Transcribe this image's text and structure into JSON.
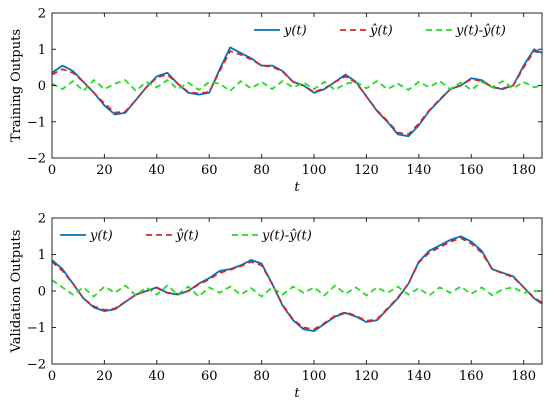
{
  "chart_data": [
    {
      "type": "line",
      "ylabel": "Training Outputs",
      "xlabel": "t",
      "xlim": [
        0,
        187
      ],
      "ylim": [
        -2,
        2
      ],
      "xticks": [
        0,
        20,
        40,
        60,
        80,
        100,
        120,
        140,
        160,
        180
      ],
      "yticks": [
        -2,
        -1,
        0,
        1,
        2
      ],
      "grid": false,
      "legend_position": "top-right",
      "series": [
        {
          "name": "y(t)",
          "color": "#0072BD",
          "dash": "solid",
          "x": [
            0,
            4,
            8,
            12,
            16,
            20,
            24,
            28,
            32,
            36,
            40,
            44,
            48,
            52,
            56,
            60,
            64,
            68,
            72,
            76,
            80,
            84,
            88,
            92,
            96,
            100,
            104,
            108,
            112,
            116,
            120,
            124,
            128,
            132,
            136,
            140,
            144,
            148,
            152,
            156,
            160,
            164,
            168,
            172,
            176,
            180,
            184,
            187
          ],
          "y": [
            0.35,
            0.55,
            0.4,
            0.1,
            -0.2,
            -0.55,
            -0.8,
            -0.75,
            -0.4,
            -0.05,
            0.25,
            0.35,
            0.05,
            -0.2,
            -0.25,
            -0.2,
            0.45,
            1.05,
            0.9,
            0.75,
            0.55,
            0.55,
            0.4,
            0.1,
            0.0,
            -0.2,
            -0.1,
            0.1,
            0.3,
            0.1,
            -0.3,
            -0.7,
            -1.0,
            -1.35,
            -1.4,
            -1.1,
            -0.7,
            -0.4,
            -0.1,
            0.0,
            0.2,
            0.15,
            -0.05,
            -0.1,
            0.0,
            0.55,
            1.0,
            0.9
          ]
        },
        {
          "name": "ŷ(t)",
          "color": "#D62728",
          "dash": "dashed",
          "x": [
            0,
            4,
            8,
            12,
            16,
            20,
            24,
            28,
            32,
            36,
            40,
            44,
            48,
            52,
            56,
            60,
            64,
            68,
            72,
            76,
            80,
            84,
            88,
            92,
            96,
            100,
            104,
            108,
            112,
            116,
            120,
            124,
            128,
            132,
            136,
            140,
            144,
            148,
            152,
            156,
            160,
            164,
            168,
            172,
            176,
            180,
            184,
            187
          ],
          "y": [
            0.3,
            0.45,
            0.35,
            0.1,
            -0.2,
            -0.5,
            -0.75,
            -0.72,
            -0.4,
            -0.05,
            0.22,
            0.3,
            0.05,
            -0.18,
            -0.22,
            -0.18,
            0.4,
            0.95,
            0.85,
            0.72,
            0.55,
            0.52,
            0.38,
            0.1,
            0.0,
            -0.18,
            -0.08,
            0.1,
            0.25,
            0.08,
            -0.3,
            -0.68,
            -0.98,
            -1.3,
            -1.35,
            -1.05,
            -0.68,
            -0.38,
            -0.1,
            0.0,
            0.18,
            0.12,
            -0.05,
            -0.08,
            0.0,
            0.5,
            0.95,
            0.88
          ]
        },
        {
          "name": "y(t)-ŷ(t)",
          "color": "#22DD22",
          "dash": "dashed",
          "x": [
            0,
            4,
            8,
            12,
            16,
            20,
            24,
            28,
            32,
            36,
            40,
            44,
            48,
            52,
            56,
            60,
            64,
            68,
            72,
            76,
            80,
            84,
            88,
            92,
            96,
            100,
            104,
            108,
            112,
            116,
            120,
            124,
            128,
            132,
            136,
            140,
            144,
            148,
            152,
            156,
            160,
            164,
            168,
            172,
            176,
            180,
            184,
            187
          ],
          "y": [
            0.05,
            -0.1,
            0.12,
            -0.15,
            0.15,
            -0.1,
            0.05,
            0.15,
            -0.15,
            0.1,
            -0.05,
            0.15,
            -0.1,
            0.08,
            -0.12,
            0.1,
            0.05,
            -0.15,
            0.12,
            -0.08,
            0.1,
            -0.1,
            0.12,
            -0.05,
            0.08,
            -0.1,
            0.1,
            -0.12,
            0.05,
            0.1,
            -0.08,
            0.12,
            -0.1,
            0.05,
            -0.12,
            0.1,
            -0.05,
            0.12,
            -0.1,
            0.08,
            -0.12,
            0.1,
            -0.05,
            0.12,
            -0.08,
            0.1,
            -0.05,
            0.0
          ]
        }
      ]
    },
    {
      "type": "line",
      "ylabel": "Validation Outputs",
      "xlabel": "t",
      "xlim": [
        0,
        187
      ],
      "ylim": [
        -2,
        2
      ],
      "xticks": [
        0,
        20,
        40,
        60,
        80,
        100,
        120,
        140,
        160,
        180
      ],
      "yticks": [
        -2,
        -1,
        0,
        1,
        2
      ],
      "grid": false,
      "legend_position": "top-left",
      "series": [
        {
          "name": "y(t)",
          "color": "#0072BD",
          "dash": "solid",
          "x": [
            0,
            4,
            8,
            12,
            16,
            20,
            24,
            28,
            32,
            36,
            40,
            44,
            48,
            52,
            56,
            60,
            64,
            68,
            72,
            76,
            80,
            84,
            88,
            92,
            96,
            100,
            104,
            108,
            112,
            116,
            120,
            124,
            128,
            132,
            136,
            140,
            144,
            148,
            152,
            156,
            160,
            164,
            168,
            172,
            176,
            180,
            184,
            187
          ],
          "y": [
            0.85,
            0.6,
            0.2,
            -0.2,
            -0.45,
            -0.55,
            -0.5,
            -0.3,
            -0.1,
            0.0,
            0.1,
            -0.05,
            -0.1,
            0.0,
            0.2,
            0.35,
            0.55,
            0.6,
            0.7,
            0.85,
            0.75,
            0.2,
            -0.4,
            -0.8,
            -1.05,
            -1.1,
            -0.9,
            -0.7,
            -0.6,
            -0.7,
            -0.85,
            -0.8,
            -0.5,
            -0.2,
            0.2,
            0.8,
            1.1,
            1.25,
            1.4,
            1.5,
            1.35,
            1.1,
            0.6,
            0.5,
            0.4,
            0.1,
            -0.2,
            -0.35
          ]
        },
        {
          "name": "ŷ(t)",
          "color": "#D62728",
          "dash": "dashed",
          "x": [
            0,
            4,
            8,
            12,
            16,
            20,
            24,
            28,
            32,
            36,
            40,
            44,
            48,
            52,
            56,
            60,
            64,
            68,
            72,
            76,
            80,
            84,
            88,
            92,
            96,
            100,
            104,
            108,
            112,
            116,
            120,
            124,
            128,
            132,
            136,
            140,
            144,
            148,
            152,
            156,
            160,
            164,
            168,
            172,
            176,
            180,
            184,
            187
          ],
          "y": [
            0.8,
            0.55,
            0.2,
            -0.2,
            -0.42,
            -0.52,
            -0.48,
            -0.3,
            -0.1,
            0.0,
            0.08,
            -0.05,
            -0.08,
            0.0,
            0.18,
            0.32,
            0.5,
            0.58,
            0.68,
            0.8,
            0.7,
            0.2,
            -0.38,
            -0.78,
            -1.0,
            -1.05,
            -0.88,
            -0.68,
            -0.58,
            -0.68,
            -0.82,
            -0.78,
            -0.48,
            -0.18,
            0.2,
            0.78,
            1.05,
            1.2,
            1.35,
            1.45,
            1.3,
            1.05,
            0.6,
            0.48,
            0.38,
            0.1,
            -0.18,
            -0.32
          ]
        },
        {
          "name": "y(t)-ŷ(t)",
          "color": "#22DD22",
          "dash": "dashed",
          "x": [
            0,
            4,
            8,
            12,
            16,
            20,
            24,
            28,
            32,
            36,
            40,
            44,
            48,
            52,
            56,
            60,
            64,
            68,
            72,
            76,
            80,
            84,
            88,
            92,
            96,
            100,
            104,
            108,
            112,
            116,
            120,
            124,
            128,
            132,
            136,
            140,
            144,
            148,
            152,
            156,
            160,
            164,
            168,
            172,
            176,
            180,
            184,
            187
          ],
          "y": [
            0.3,
            0.1,
            -0.1,
            0.1,
            -0.15,
            0.12,
            -0.05,
            0.15,
            -0.12,
            0.1,
            -0.1,
            0.15,
            -0.1,
            0.12,
            -0.15,
            0.1,
            -0.05,
            0.12,
            -0.1,
            0.08,
            -0.15,
            0.1,
            -0.1,
            0.12,
            -0.05,
            0.1,
            -0.12,
            0.15,
            -0.08,
            0.1,
            -0.12,
            0.1,
            -0.05,
            0.12,
            -0.1,
            0.08,
            -0.12,
            0.1,
            -0.05,
            0.12,
            -0.08,
            0.1,
            -0.12,
            0.05,
            0.1,
            -0.05,
            0.0,
            0.0
          ]
        }
      ]
    }
  ]
}
